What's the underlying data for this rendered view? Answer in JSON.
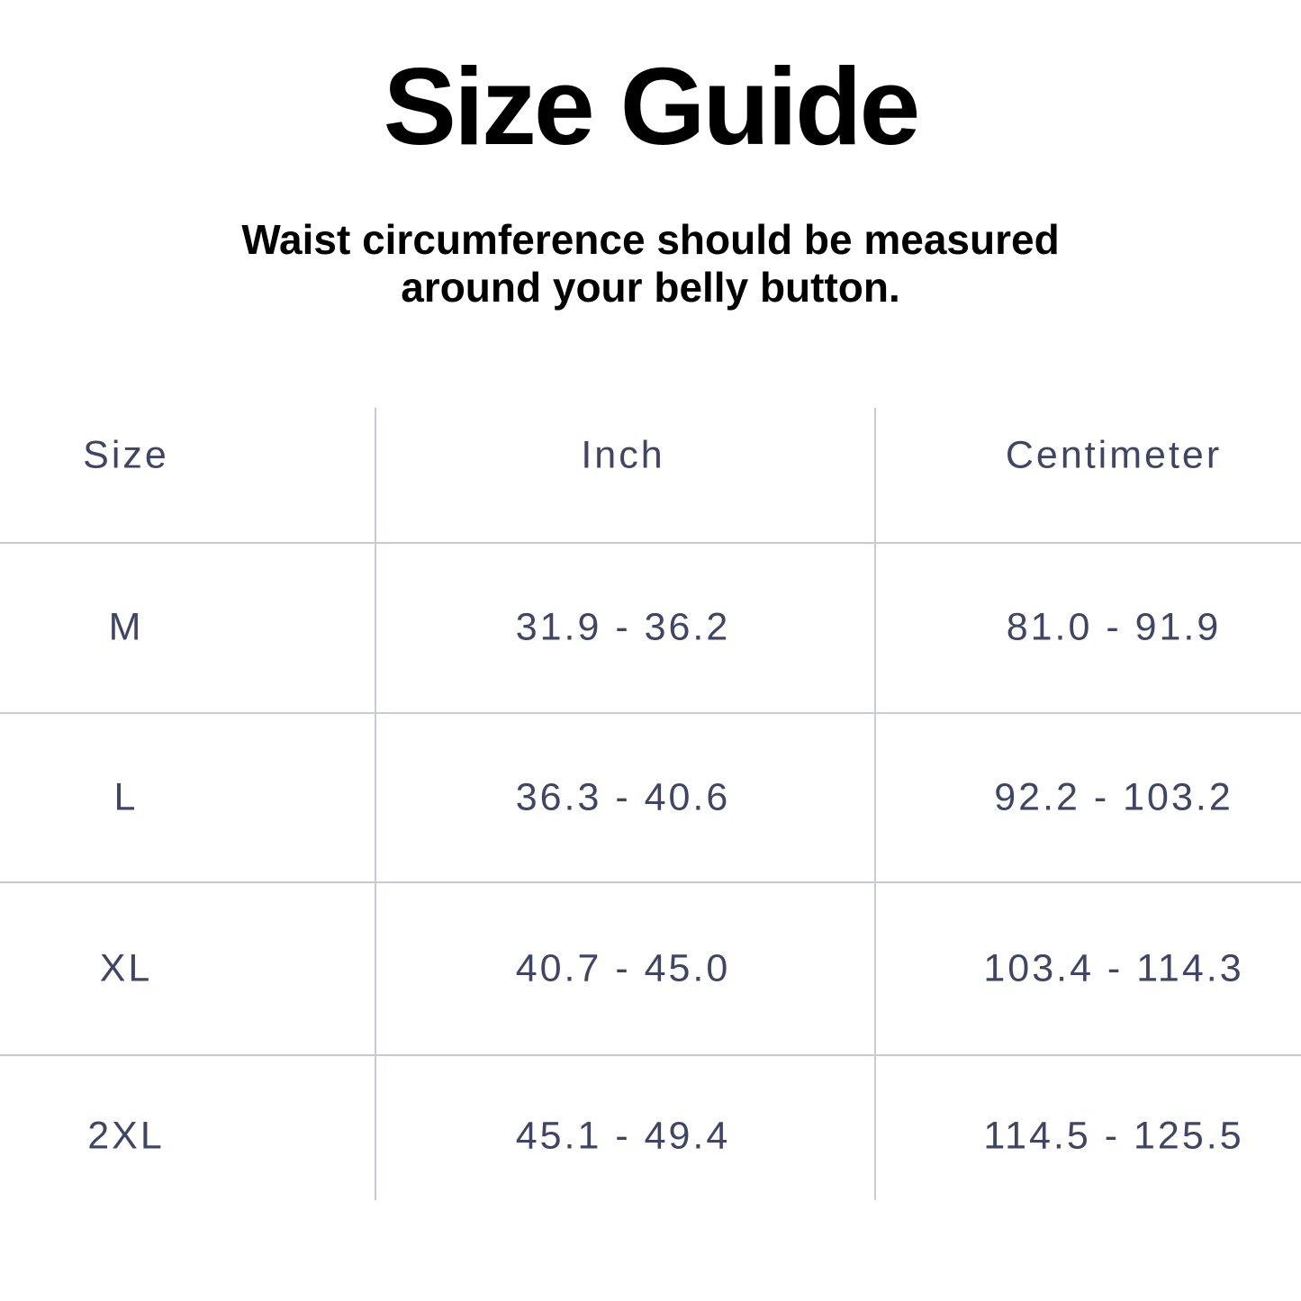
{
  "title": "Size Guide",
  "subtitle": {
    "line1": "Waist circumference should be measured",
    "line2": "around your belly button."
  },
  "table": {
    "columns": [
      "Size",
      "Inch",
      "Centimeter"
    ],
    "rows": [
      {
        "size": "M",
        "inch": "31.9 - 36.2",
        "centimeter": "81.0 - 91.9"
      },
      {
        "size": "L",
        "inch": "36.3 - 40.6",
        "centimeter": "92.2 - 103.2"
      },
      {
        "size": "XL",
        "inch": "40.7 - 45.0",
        "centimeter": "103.4 - 114.3"
      },
      {
        "size": "2XL",
        "inch": "45.1 - 49.4",
        "centimeter": "114.5 - 125.5"
      }
    ]
  },
  "colors": {
    "heading_text": "#000000",
    "table_text": "#3e4566",
    "grid_line": "#c8cbd6",
    "background": "#ffffff"
  }
}
